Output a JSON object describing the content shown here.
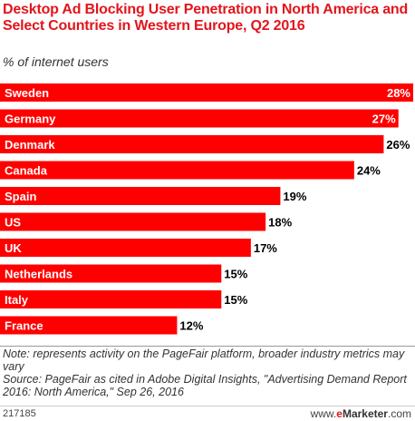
{
  "header": {
    "title": "Desktop Ad Blocking User Penetration in North America and Select Countries in Western Europe, Q2 2016",
    "subtitle": "% of internet users"
  },
  "chart_data": {
    "type": "bar",
    "orientation": "horizontal",
    "categories": [
      "Sweden",
      "Germany",
      "Denmark",
      "Canada",
      "Spain",
      "US",
      "UK",
      "Netherlands",
      "Italy",
      "France"
    ],
    "values": [
      28,
      27,
      26,
      24,
      19,
      18,
      17,
      15,
      15,
      12
    ],
    "value_labels": [
      "28%",
      "27%",
      "26%",
      "24%",
      "19%",
      "18%",
      "17%",
      "15%",
      "15%",
      "12%"
    ],
    "bar_color": "#ff0000",
    "xlim": [
      0,
      28
    ],
    "grid": false,
    "legend": "none"
  },
  "footer": {
    "note": "Note: represents activity on the PageFair platform, broader industry metrics may vary",
    "source": "Source: PageFair as cited in Adobe Digital Insights, \"Advertising Demand Report 2016: North America,\" Sep 26, 2016",
    "chart_id": "217185",
    "brand_prefix": "www.",
    "brand_e": "e",
    "brand_name": "Marketer",
    "brand_suffix": ".com"
  }
}
